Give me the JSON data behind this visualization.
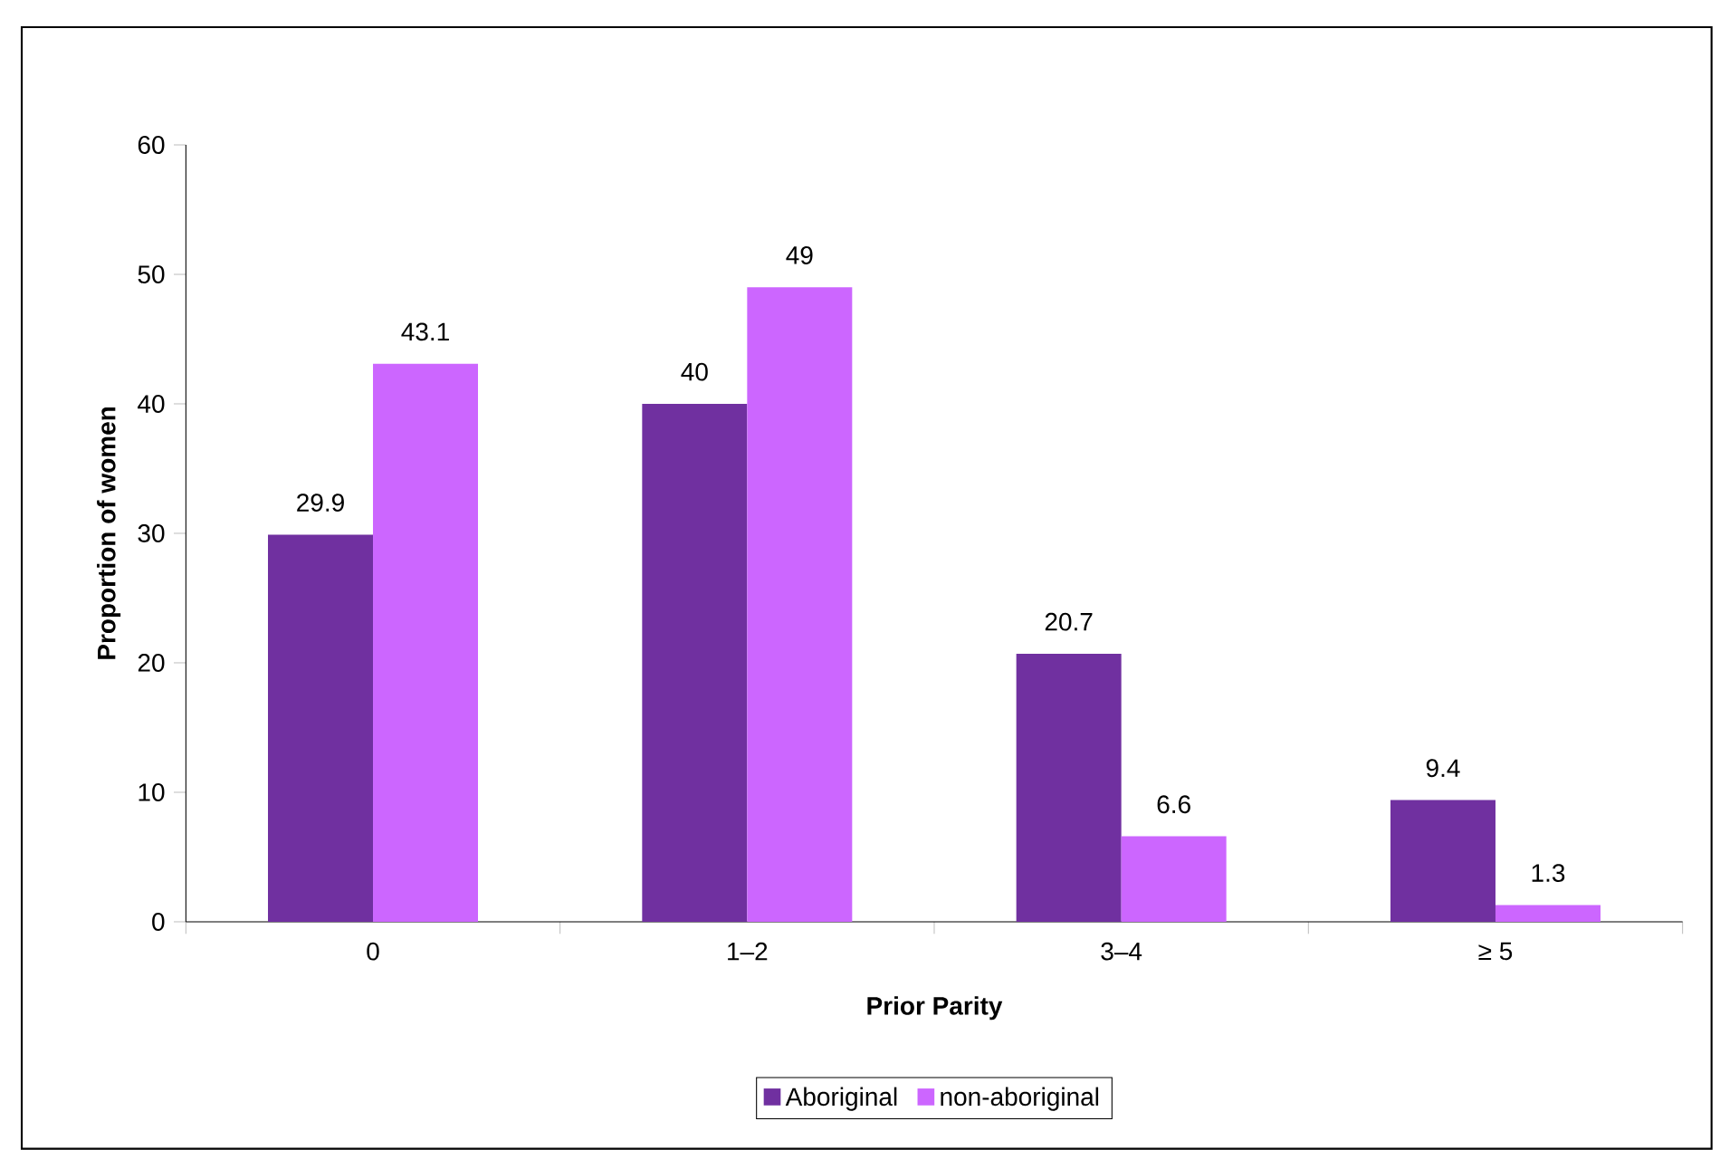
{
  "chart_data": {
    "type": "bar",
    "xlabel": "Prior Parity",
    "ylabel": "Proportion of women",
    "categories": [
      "0",
      "1–2",
      "3–4",
      "≥ 5"
    ],
    "series": [
      {
        "name": "Aboriginal",
        "color": "#7030a0",
        "values": [
          29.9,
          40,
          20.7,
          9.4
        ]
      },
      {
        "name": "non-aboriginal",
        "color": "#cc66ff",
        "values": [
          43.1,
          49,
          6.6,
          1.3
        ]
      }
    ],
    "ylim": [
      0,
      60
    ],
    "yticks": [
      0,
      10,
      20,
      30,
      40,
      50,
      60
    ],
    "data_labels": true,
    "legend": "bottom",
    "grid": false
  }
}
